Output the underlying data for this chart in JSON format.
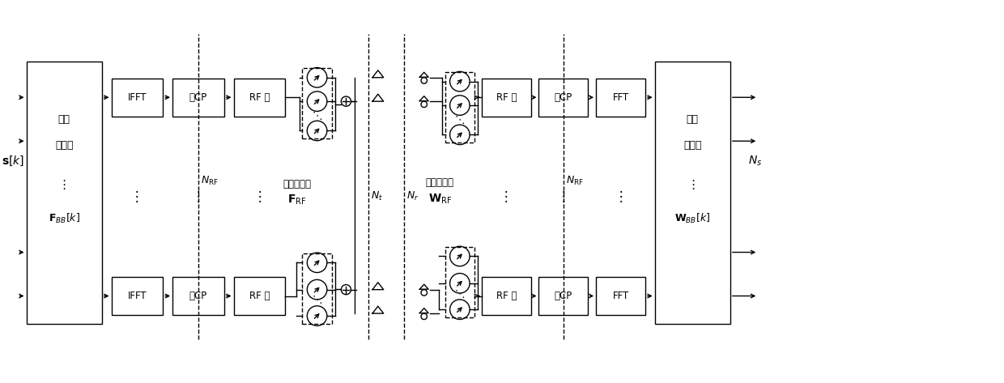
{
  "bg_color": "#ffffff",
  "line_color": "#000000",
  "figsize": [
    12.4,
    4.73
  ],
  "dpi": 100,
  "digital_encoder_label1": "数字",
  "digital_encoder_label2": "编码器",
  "analog_encoder_label1": "模拟编码器",
  "analog_combiner_label1": "模拟组合器",
  "digital_combiner_label1": "数字",
  "digital_combiner_label2": "组合器"
}
